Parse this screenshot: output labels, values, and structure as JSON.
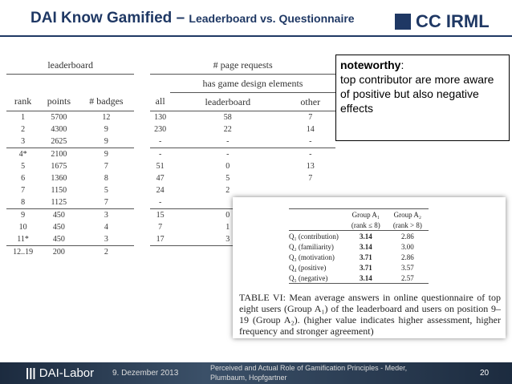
{
  "header": {
    "title_main": "DAI Know Gamified – ",
    "title_sub": "Leaderboard vs. Questionnaire",
    "logo": "CC IRML"
  },
  "table": {
    "group_headers": [
      "leaderboard",
      "# page requests"
    ],
    "sub_header": "has game design elements",
    "columns": [
      "rank",
      "points",
      "# badges",
      "all",
      "leaderboard",
      "other"
    ],
    "row_groups": [
      [
        [
          "1",
          "5700",
          "12",
          "130",
          "58",
          "7"
        ],
        [
          "2",
          "4300",
          "9",
          "230",
          "22",
          "14"
        ],
        [
          "3",
          "2625",
          "9",
          "-",
          "-",
          "-"
        ]
      ],
      [
        [
          "4*",
          "2100",
          "9",
          "-",
          "-",
          "-"
        ],
        [
          "5",
          "1675",
          "7",
          "51",
          "0",
          "13"
        ],
        [
          "6",
          "1360",
          "8",
          "47",
          "5",
          "7"
        ],
        [
          "7",
          "1150",
          "5",
          "24",
          "2"
        ],
        [
          "8",
          "1125",
          "7",
          "-"
        ]
      ],
      [
        [
          "9",
          "450",
          "3",
          "15",
          "0"
        ],
        [
          "10",
          "450",
          "4",
          "7",
          "1"
        ],
        [
          "11*",
          "450",
          "3",
          "17",
          "3"
        ]
      ],
      [
        [
          "12..19",
          "200",
          "2"
        ]
      ]
    ]
  },
  "note": {
    "label": "noteworthy",
    "colon": ":",
    "text": "top contributor are more aware of positive but also negative effects"
  },
  "questionnaire": {
    "columns": [
      [
        "Group A₁",
        "(rank ≤ 8)"
      ],
      [
        "Group A₂",
        "(rank > 8)"
      ]
    ],
    "rows": [
      [
        "Q₁ (contribution)",
        "3.14",
        "2.86"
      ],
      [
        "Q₂ (familiarity)",
        "3.14",
        "3.00"
      ],
      [
        "Q₃ (motivation)",
        "3.71",
        "2.86"
      ],
      [
        "Q₄ (positive)",
        "3.71",
        "3.57"
      ],
      [
        "Q₅ (negative)",
        "3.14",
        "2.57"
      ]
    ],
    "caption": "TABLE VI: Mean average answers in online questionnaire of top eight users (Group A₁) of the leaderboard and users on position 9–19 (Group A₂). (higher value indicates higher assessment, higher frequency and stronger agreement)"
  },
  "footer": {
    "org": "DAI-Labor",
    "date": "9. Dezember 2013",
    "citation": "Perceived and Actual Role of Gamification Principles - Meder, Plumbaum, Hopfgartner",
    "page": "20"
  }
}
